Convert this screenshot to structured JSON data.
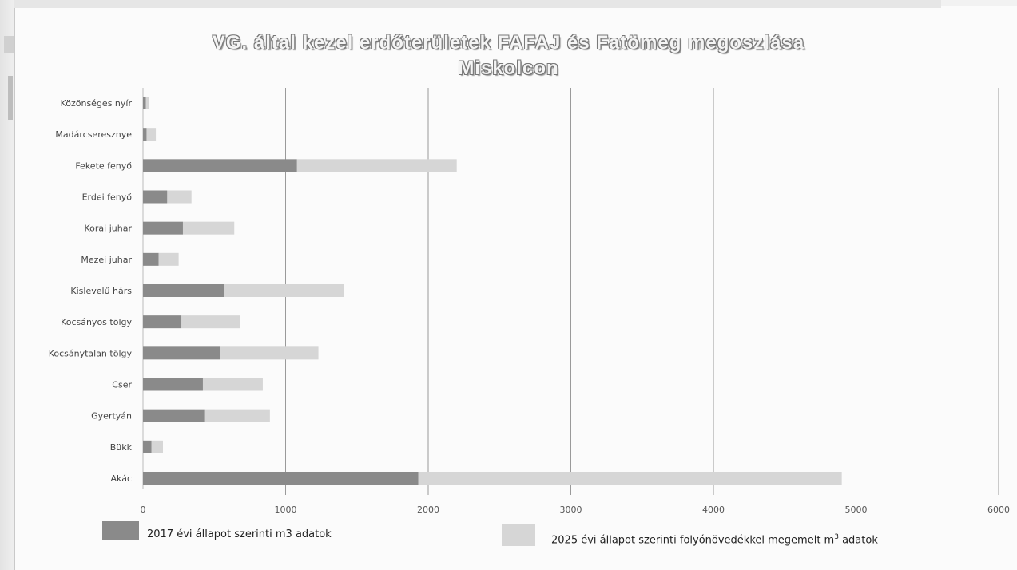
{
  "chart_data": {
    "type": "bar",
    "orientation": "horizontal",
    "stacked": true,
    "title_line1": "VG. által kezel erdőterületek FAFAJ és Fatömeg megoszlása",
    "title_line2": "Miskolcon",
    "categories": [
      "Közönséges nyír",
      "Madárcseresznye",
      "Fekete fenyő",
      "Erdei fenyő",
      "Korai juhar",
      "Mezei juhar",
      "Kislevelű hárs",
      "Kocsányos tölgy",
      "Kocsánytalan tölgy",
      "Cser",
      "Gyertyán",
      "Bükk",
      "Akác"
    ],
    "series": [
      {
        "name": "2017 évi állapot szerinti m3 adatok",
        "color": "#8a8a8a",
        "values": [
          20,
          25,
          1080,
          170,
          280,
          110,
          570,
          270,
          540,
          420,
          430,
          60,
          1930
        ]
      },
      {
        "name": "2025 évi állapot szerinti folyónövedékkel megemelt m³ adatok",
        "color": "#d6d6d6",
        "values": [
          20,
          65,
          1120,
          170,
          360,
          140,
          840,
          410,
          690,
          420,
          460,
          80,
          2970
        ]
      }
    ],
    "xlim": [
      0,
      6000
    ],
    "xticks": [
      "0",
      "1000",
      "2000",
      "3000",
      "4000",
      "5000",
      "6000"
    ],
    "grid": "vertical",
    "legend_position": "bottom"
  },
  "legend": {
    "item1_prefix": "2017 évi állapot szerinti m3 adatok",
    "item2_prefix": "2025 évi állapot szerinti folyónövedékkel megemelt m",
    "item2_sup": "3",
    "item2_suffix": " adatok"
  }
}
